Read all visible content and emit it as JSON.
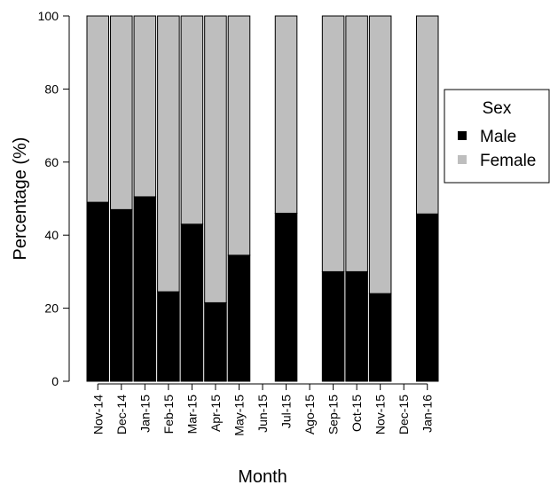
{
  "chart_data": {
    "type": "bar",
    "stacked": true,
    "categories": [
      "Nov-14",
      "Dec-14",
      "Jan-15",
      "Feb-15",
      "Mar-15",
      "Apr-15",
      "May-15",
      "Jun-15",
      "Jul-15",
      "Ago-15",
      "Sep-15",
      "Oct-15",
      "Nov-15",
      "Dec-15",
      "Jan-16"
    ],
    "series": [
      {
        "name": "Male",
        "color": "#000000",
        "values": [
          49,
          47,
          50.5,
          24.5,
          43,
          21.5,
          34.5,
          null,
          46,
          null,
          30,
          30,
          24,
          null,
          45.8
        ]
      },
      {
        "name": "Female",
        "color": "#bebebe",
        "values": [
          51,
          53,
          49.5,
          75.5,
          57,
          78.5,
          65.5,
          null,
          54,
          null,
          70,
          70,
          76,
          null,
          54.2
        ]
      }
    ],
    "title": "",
    "xlabel": "Month",
    "ylabel": "Percentage (%)",
    "ylim": [
      0,
      100
    ],
    "yticks": [
      "0",
      "20",
      "40",
      "60",
      "80",
      "100"
    ],
    "grid": false,
    "legend": {
      "title": "Sex",
      "position": "right"
    }
  }
}
